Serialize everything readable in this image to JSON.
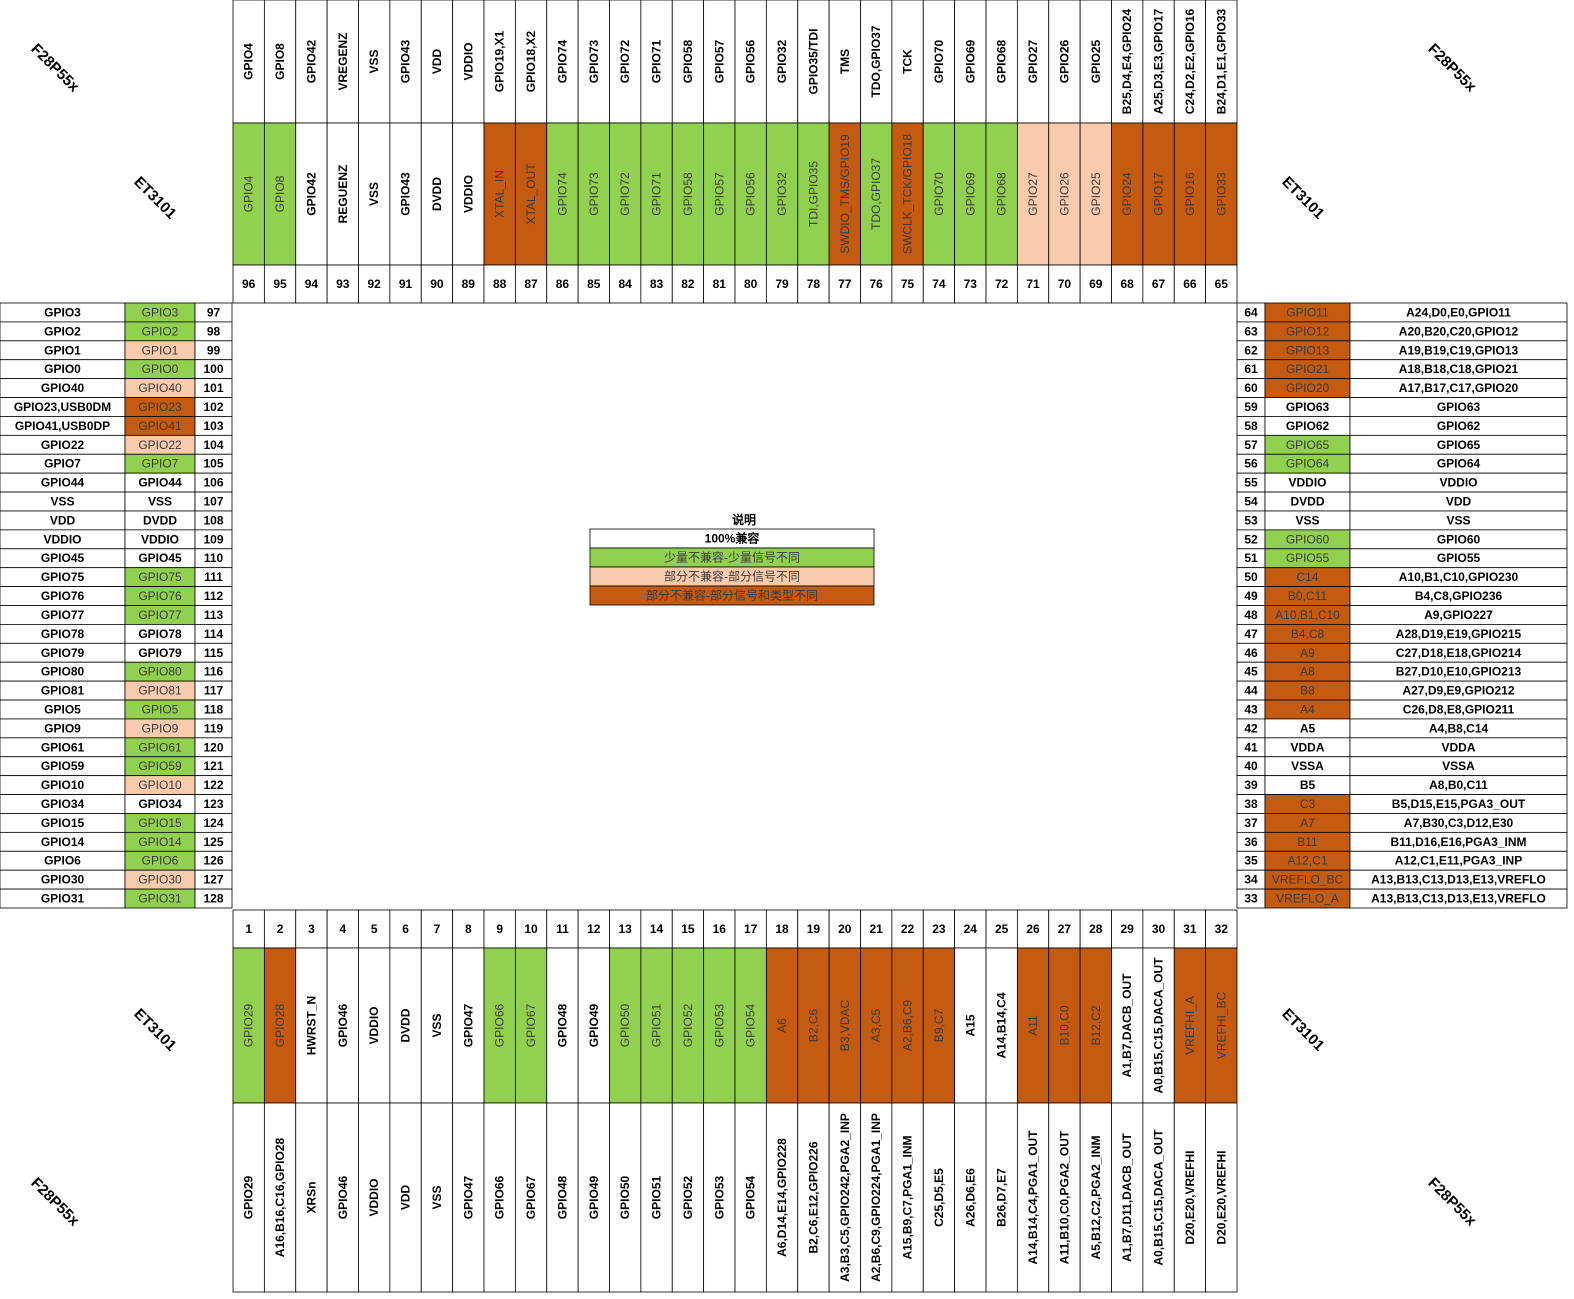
{
  "legend": {
    "title": "说明",
    "items": [
      {
        "label": "100%兼容",
        "color": "#ffffff"
      },
      {
        "label": "少量不兼容-少量信号不同",
        "color": "#92d050"
      },
      {
        "label": "部分不兼容-部分信号不同",
        "color": "#f8cbad"
      },
      {
        "label": "部分不兼容-部分信号和类型不同",
        "color": "#c55a11"
      }
    ]
  },
  "corner_labels": {
    "top_left": {
      "chip": "F28P55x",
      "module": "ET3101"
    },
    "top_right": {
      "chip": "F28P55x",
      "module": "ET3101"
    },
    "bottom_left": {
      "chip": "F28P55x",
      "module": "ET3101"
    },
    "bottom_right": {
      "chip": "F28P55x",
      "module": "ET3101"
    }
  },
  "top_pins": [
    {
      "number": 96,
      "f28": "GPIO4",
      "et3101": "GPIO4",
      "color": "#92d050"
    },
    {
      "number": 95,
      "f28": "GPIO8",
      "et3101": "GPIO8",
      "color": "#92d050"
    },
    {
      "number": 94,
      "f28": "GPIO42",
      "et3101": "GPIO42",
      "color": "#ffffff"
    },
    {
      "number": 93,
      "f28": "VREGENZ",
      "et3101": "REGUENZ",
      "color": "#ffffff"
    },
    {
      "number": 92,
      "f28": "VSS",
      "et3101": "VSS",
      "color": "#ffffff"
    },
    {
      "number": 91,
      "f28": "GPIO43",
      "et3101": "GPIO43",
      "color": "#ffffff"
    },
    {
      "number": 90,
      "f28": "VDD",
      "et3101": "DVDD",
      "color": "#ffffff"
    },
    {
      "number": 89,
      "f28": "VDDIO",
      "et3101": "VDDIO",
      "color": "#ffffff"
    },
    {
      "number": 88,
      "f28": "GPIO19,X1",
      "et3101": "XTAL_IN",
      "color": "#c55a11"
    },
    {
      "number": 87,
      "f28": "GPIO18,X2",
      "et3101": "XTAL_OUT",
      "color": "#c55a11"
    },
    {
      "number": 86,
      "f28": "GPIO74",
      "et3101": "GPIO74",
      "color": "#92d050"
    },
    {
      "number": 85,
      "f28": "GPIO73",
      "et3101": "GPIO73",
      "color": "#92d050"
    },
    {
      "number": 84,
      "f28": "GPIO72",
      "et3101": "GPIO72",
      "color": "#92d050"
    },
    {
      "number": 83,
      "f28": "GPIO71",
      "et3101": "GPIO71",
      "color": "#92d050"
    },
    {
      "number": 82,
      "f28": "GPIO58",
      "et3101": "GPIO58",
      "color": "#92d050"
    },
    {
      "number": 81,
      "f28": "GPIO57",
      "et3101": "GPIO57",
      "color": "#92d050"
    },
    {
      "number": 80,
      "f28": "GPIO56",
      "et3101": "GPIO56",
      "color": "#92d050"
    },
    {
      "number": 79,
      "f28": "GPIO32",
      "et3101": "GPIO32",
      "color": "#92d050"
    },
    {
      "number": 78,
      "f28": "GPIO35/TDI",
      "et3101": "TDI,GPIO35",
      "color": "#92d050"
    },
    {
      "number": 77,
      "f28": "TMS",
      "et3101": "SWDIO_TMS/GPIO19",
      "color": "#c55a11"
    },
    {
      "number": 76,
      "f28": "TDO,GPIO37",
      "et3101": "TDO,GPIO37",
      "color": "#92d050"
    },
    {
      "number": 75,
      "f28": "TCK",
      "et3101": "SWCLK_TCK/GPIO18",
      "color": "#c55a11"
    },
    {
      "number": 74,
      "f28": "GPIO70",
      "et3101": "GPIO70",
      "color": "#92d050"
    },
    {
      "number": 73,
      "f28": "GPIO69",
      "et3101": "GPIO69",
      "color": "#92d050"
    },
    {
      "number": 72,
      "f28": "GPIO68",
      "et3101": "GPIO68",
      "color": "#92d050"
    },
    {
      "number": 71,
      "f28": "GPIO27",
      "et3101": "GPIO27",
      "color": "#f8cbad"
    },
    {
      "number": 70,
      "f28": "GPIO26",
      "et3101": "GPIO26",
      "color": "#f8cbad"
    },
    {
      "number": 69,
      "f28": "GPIO25",
      "et3101": "GPIO25",
      "color": "#f8cbad"
    },
    {
      "number": 68,
      "f28": "B25,D4,E4,GPIO24",
      "et3101": "GPIO24",
      "color": "#c55a11"
    },
    {
      "number": 67,
      "f28": "A25,D3,E3,GPIO17",
      "et3101": "GPIO17",
      "color": "#c55a11"
    },
    {
      "number": 66,
      "f28": "C24,D2,E2,GPIO16",
      "et3101": "GPIO16",
      "color": "#c55a11"
    },
    {
      "number": 65,
      "f28": "B24,D1,E1,GPIO33",
      "et3101": "GPIO33",
      "color": "#c55a11"
    }
  ],
  "left_pins": [
    {
      "number": 97,
      "f28": "GPIO3",
      "et3101": "GPIO3",
      "color": "#92d050"
    },
    {
      "number": 98,
      "f28": "GPIO2",
      "et3101": "GPIO2",
      "color": "#92d050"
    },
    {
      "number": 99,
      "f28": "GPIO1",
      "et3101": "GPIO1",
      "color": "#f8cbad"
    },
    {
      "number": 100,
      "f28": "GPIO0",
      "et3101": "GPIO0",
      "color": "#92d050"
    },
    {
      "number": 101,
      "f28": "GPIO40",
      "et3101": "GPIO40",
      "color": "#f8cbad"
    },
    {
      "number": 102,
      "f28": "GPIO23,USB0DM",
      "et3101": "GPIO23",
      "color": "#c55a11"
    },
    {
      "number": 103,
      "f28": "GPIO41,USB0DP",
      "et3101": "GPIO41",
      "color": "#c55a11"
    },
    {
      "number": 104,
      "f28": "GPIO22",
      "et3101": "GPIO22",
      "color": "#f8cbad"
    },
    {
      "number": 105,
      "f28": "GPIO7",
      "et3101": "GPIO7",
      "color": "#92d050"
    },
    {
      "number": 106,
      "f28": "GPIO44",
      "et3101": "GPIO44",
      "color": "#ffffff"
    },
    {
      "number": 107,
      "f28": "VSS",
      "et3101": "VSS",
      "color": "#ffffff"
    },
    {
      "number": 108,
      "f28": "VDD",
      "et3101": "DVDD",
      "color": "#ffffff"
    },
    {
      "number": 109,
      "f28": "VDDIO",
      "et3101": "VDDIO",
      "color": "#ffffff"
    },
    {
      "number": 110,
      "f28": "GPIO45",
      "et3101": "GPIO45",
      "color": "#ffffff"
    },
    {
      "number": 111,
      "f28": "GPIO75",
      "et3101": "GPIO75",
      "color": "#92d050"
    },
    {
      "number": 112,
      "f28": "GPIO76",
      "et3101": "GPIO76",
      "color": "#92d050"
    },
    {
      "number": 113,
      "f28": "GPIO77",
      "et3101": "GPIO77",
      "color": "#92d050"
    },
    {
      "number": 114,
      "f28": "GPIO78",
      "et3101": "GPIO78",
      "color": "#ffffff"
    },
    {
      "number": 115,
      "f28": "GPIO79",
      "et3101": "GPIO79",
      "color": "#ffffff"
    },
    {
      "number": 116,
      "f28": "GPIO80",
      "et3101": "GPIO80",
      "color": "#92d050"
    },
    {
      "number": 117,
      "f28": "GPIO81",
      "et3101": "GPIO81",
      "color": "#f8cbad"
    },
    {
      "number": 118,
      "f28": "GPIO5",
      "et3101": "GPIO5",
      "color": "#92d050"
    },
    {
      "number": 119,
      "f28": "GPIO9",
      "et3101": "GPIO9",
      "color": "#f8cbad"
    },
    {
      "number": 120,
      "f28": "GPIO61",
      "et3101": "GPIO61",
      "color": "#92d050"
    },
    {
      "number": 121,
      "f28": "GPIO59",
      "et3101": "GPIO59",
      "color": "#92d050"
    },
    {
      "number": 122,
      "f28": "GPIO10",
      "et3101": "GPIO10",
      "color": "#f8cbad"
    },
    {
      "number": 123,
      "f28": "GPIO34",
      "et3101": "GPIO34",
      "color": "#ffffff"
    },
    {
      "number": 124,
      "f28": "GPIO15",
      "et3101": "GPIO15",
      "color": "#92d050"
    },
    {
      "number": 125,
      "f28": "GPIO14",
      "et3101": "GPIO14",
      "color": "#92d050"
    },
    {
      "number": 126,
      "f28": "GPIO6",
      "et3101": "GPIO6",
      "color": "#92d050"
    },
    {
      "number": 127,
      "f28": "GPIO30",
      "et3101": "GPIO30",
      "color": "#f8cbad"
    },
    {
      "number": 128,
      "f28": "GPIO31",
      "et3101": "GPIO31",
      "color": "#92d050"
    }
  ],
  "right_pins": [
    {
      "number": 64,
      "et3101": "GPIO11",
      "f28": "A24,D0,E0,GPIO11",
      "color": "#c55a11"
    },
    {
      "number": 63,
      "et3101": "GPIO12",
      "f28": "A20,B20,C20,GPIO12",
      "color": "#c55a11"
    },
    {
      "number": 62,
      "et3101": "GPIO13",
      "f28": "A19,B19,C19,GPIO13",
      "color": "#c55a11"
    },
    {
      "number": 61,
      "et3101": "GPIO21",
      "f28": "A18,B18,C18,GPIO21",
      "color": "#c55a11"
    },
    {
      "number": 60,
      "et3101": "GPIO20",
      "f28": "A17,B17,C17,GPIO20",
      "color": "#c55a11"
    },
    {
      "number": 59,
      "et3101": "GPIO63",
      "f28": "GPIO63",
      "color": "#ffffff"
    },
    {
      "number": 58,
      "et3101": "GPIO62",
      "f28": "GPIO62",
      "color": "#ffffff"
    },
    {
      "number": 57,
      "et3101": "GPIO65",
      "f28": "GPIO65",
      "color": "#92d050"
    },
    {
      "number": 56,
      "et3101": "GPIO64",
      "f28": "GPIO64",
      "color": "#92d050"
    },
    {
      "number": 55,
      "et3101": "VDDIO",
      "f28": "VDDIO",
      "color": "#ffffff"
    },
    {
      "number": 54,
      "et3101": "DVDD",
      "f28": "VDD",
      "color": "#ffffff"
    },
    {
      "number": 53,
      "et3101": "VSS",
      "f28": "VSS",
      "color": "#ffffff"
    },
    {
      "number": 52,
      "et3101": "GPIO60",
      "f28": "GPIO60",
      "color": "#92d050"
    },
    {
      "number": 51,
      "et3101": "GPIO55",
      "f28": "GPIO55",
      "color": "#92d050"
    },
    {
      "number": 50,
      "et3101": "C14",
      "f28": "A10,B1,C10,GPIO230",
      "color": "#c55a11"
    },
    {
      "number": 49,
      "et3101": "B0,C11",
      "f28": "B4,C8,GPIO236",
      "color": "#c55a11"
    },
    {
      "number": 48,
      "et3101": "A10,B1,C10",
      "f28": "A9,GPIO227",
      "color": "#c55a11"
    },
    {
      "number": 47,
      "et3101": "B4,C8",
      "f28": "A28,D19,E19,GPIO215",
      "color": "#c55a11"
    },
    {
      "number": 46,
      "et3101": "A9",
      "f28": "C27,D18,E18,GPIO214",
      "color": "#c55a11"
    },
    {
      "number": 45,
      "et3101": "A8",
      "f28": "B27,D10,E10,GPIO213",
      "color": "#c55a11"
    },
    {
      "number": 44,
      "et3101": "B8",
      "f28": "A27,D9,E9,GPIO212",
      "color": "#c55a11"
    },
    {
      "number": 43,
      "et3101": "A4",
      "f28": "C26,D8,E8,GPIO211",
      "color": "#c55a11"
    },
    {
      "number": 42,
      "et3101": "A5",
      "f28": "A4,B8,C14",
      "color": "#ffffff"
    },
    {
      "number": 41,
      "et3101": "VDDA",
      "f28": "VDDA",
      "color": "#ffffff"
    },
    {
      "number": 40,
      "et3101": "VSSA",
      "f28": "VSSA",
      "color": "#ffffff"
    },
    {
      "number": 39,
      "et3101": "B5",
      "f28": "A8,B0,C11",
      "color": "#ffffff"
    },
    {
      "number": 38,
      "et3101": "C3",
      "f28": "B5,D15,E15,PGA3_OUT",
      "color": "#c55a11"
    },
    {
      "number": 37,
      "et3101": "A7",
      "f28": "A7,B30,C3,D12,E30",
      "color": "#c55a11"
    },
    {
      "number": 36,
      "et3101": "B11",
      "f28": "B11,D16,E16,PGA3_INM",
      "color": "#c55a11"
    },
    {
      "number": 35,
      "et3101": "A12,C1",
      "f28": "A12,C1,E11,PGA3_INP",
      "color": "#c55a11"
    },
    {
      "number": 34,
      "et3101": "VREFLO_BC",
      "f28": "A13,B13,C13,D13,E13,VREFLO",
      "color": "#c55a11"
    },
    {
      "number": 33,
      "et3101": "VREFLO_A",
      "f28": "A13,B13,C13,D13,E13,VREFLO",
      "color": "#c55a11"
    }
  ],
  "bottom_pins": [
    {
      "number": 1,
      "et3101": "GPIO29",
      "f28": "GPIO29",
      "color": "#92d050"
    },
    {
      "number": 2,
      "et3101": "GPIO28",
      "f28": "A16,B16,C16,GPIO28",
      "color": "#c55a11"
    },
    {
      "number": 3,
      "et3101": "HWRST_N",
      "f28": "XRSn",
      "color": "#ffffff"
    },
    {
      "number": 4,
      "et3101": "GPIO46",
      "f28": "GPIO46",
      "color": "#ffffff"
    },
    {
      "number": 5,
      "et3101": "VDDIO",
      "f28": "VDDIO",
      "color": "#ffffff"
    },
    {
      "number": 6,
      "et3101": "DVDD",
      "f28": "VDD",
      "color": "#ffffff"
    },
    {
      "number": 7,
      "et3101": "VSS",
      "f28": "VSS",
      "color": "#ffffff"
    },
    {
      "number": 8,
      "et3101": "GPIO47",
      "f28": "GPIO47",
      "color": "#ffffff"
    },
    {
      "number": 9,
      "et3101": "GPIO66",
      "f28": "GPIO66",
      "color": "#92d050"
    },
    {
      "number": 10,
      "et3101": "GPIO67",
      "f28": "GPIO67",
      "color": "#92d050"
    },
    {
      "number": 11,
      "et3101": "GPIO48",
      "f28": "GPIO48",
      "color": "#ffffff"
    },
    {
      "number": 12,
      "et3101": "GPIO49",
      "f28": "GPIO49",
      "color": "#ffffff"
    },
    {
      "number": 13,
      "et3101": "GPIO50",
      "f28": "GPIO50",
      "color": "#92d050"
    },
    {
      "number": 14,
      "et3101": "GPIO51",
      "f28": "GPIO51",
      "color": "#92d050"
    },
    {
      "number": 15,
      "et3101": "GPIO52",
      "f28": "GPIO52",
      "color": "#92d050"
    },
    {
      "number": 16,
      "et3101": "GPIO53",
      "f28": "GPIO53",
      "color": "#92d050"
    },
    {
      "number": 17,
      "et3101": "GPIO54",
      "f28": "GPIO54",
      "color": "#92d050"
    },
    {
      "number": 18,
      "et3101": "A6",
      "f28": "A6,D14,E14,GPIO228",
      "color": "#c55a11"
    },
    {
      "number": 19,
      "et3101": "B2,C6",
      "f28": "B2,C6,E12,GPIO226",
      "color": "#c55a11"
    },
    {
      "number": 20,
      "et3101": "B3,VDAC",
      "f28": "A3,B3,C5,GPIO242,PGA2_INP",
      "color": "#c55a11"
    },
    {
      "number": 21,
      "et3101": "A3,C5",
      "f28": "A2,B6,C9,GPIO224,PGA1_INP",
      "color": "#c55a11"
    },
    {
      "number": 22,
      "et3101": "A2,B6,C9",
      "f28": "A15,B9,C7,PGA1_INM",
      "color": "#c55a11"
    },
    {
      "number": 23,
      "et3101": "B9,C7",
      "f28": "C25,D5,E5",
      "color": "#c55a11"
    },
    {
      "number": 24,
      "et3101": "A15",
      "f28": "A26,D6,E6",
      "color": "#ffffff"
    },
    {
      "number": 25,
      "et3101": "A14,B14,C4",
      "f28": "B26,D7,E7",
      "color": "#ffffff"
    },
    {
      "number": 26,
      "et3101": "A11",
      "f28": "A14,B14,C4,PGA1_OUT",
      "color": "#c55a11"
    },
    {
      "number": 27,
      "et3101": "B10,C0",
      "f28": "A11,B10,C0,PGA2_OUT",
      "color": "#c55a11"
    },
    {
      "number": 28,
      "et3101": "B12,C2",
      "f28": "A5,B12,C2,PGA2_INM",
      "color": "#c55a11"
    },
    {
      "number": 29,
      "et3101": "A1,B7,DACB_OUT",
      "f28": "A1,B7,D11,DACB_OUT",
      "color": "#ffffff"
    },
    {
      "number": 30,
      "et3101": "A0,B15,C15,DACA_OUT",
      "f28": "A0,B15,C15,DACA_OUT",
      "color": "#ffffff"
    },
    {
      "number": 31,
      "et3101": "VREFHI_A",
      "f28": "D20,E20,VREFHI",
      "color": "#c55a11"
    },
    {
      "number": 32,
      "et3101": "VREFHI_BC",
      "f28": "D20,E20,VREFHI",
      "color": "#c55a11"
    }
  ]
}
